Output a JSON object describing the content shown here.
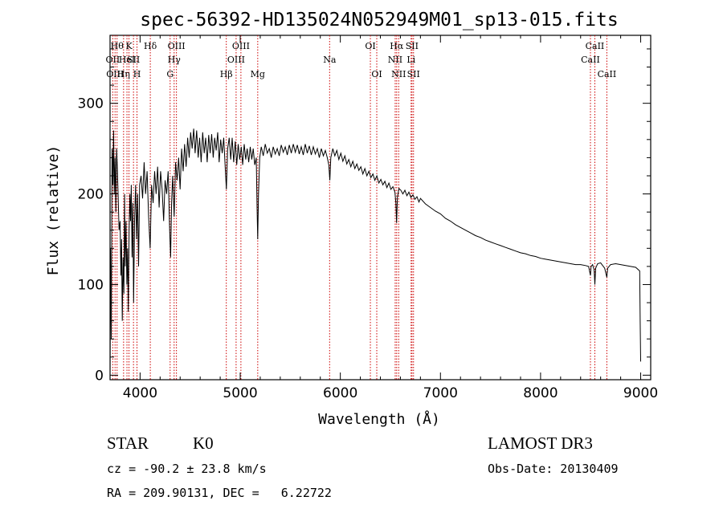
{
  "chart_data": {
    "type": "line",
    "title": "spec-56392-HD135024N052949M01_sp13-015.fits",
    "xlabel": "Wavelength (Å)",
    "ylabel": "Flux (relative)",
    "xlim": [
      3700,
      9100
    ],
    "ylim": [
      -5,
      375
    ],
    "xticks": [
      4000,
      5000,
      6000,
      7000,
      8000,
      9000
    ],
    "yticks": [
      0,
      100,
      200,
      300
    ],
    "series": [
      {
        "name": "spectrum",
        "points": [
          [
            3700,
            0
          ],
          [
            3705,
            140
          ],
          [
            3712,
            40
          ],
          [
            3720,
            250
          ],
          [
            3728,
            210
          ],
          [
            3735,
            270
          ],
          [
            3742,
            200
          ],
          [
            3750,
            240
          ],
          [
            3758,
            180
          ],
          [
            3765,
            250
          ],
          [
            3772,
            230
          ],
          [
            3780,
            200
          ],
          [
            3790,
            160
          ],
          [
            3800,
            170
          ],
          [
            3808,
            110
          ],
          [
            3815,
            150
          ],
          [
            3822,
            60
          ],
          [
            3830,
            130
          ],
          [
            3838,
            90
          ],
          [
            3845,
            200
          ],
          [
            3852,
            120
          ],
          [
            3860,
            170
          ],
          [
            3868,
            100
          ],
          [
            3875,
            140
          ],
          [
            3882,
            70
          ],
          [
            3890,
            160
          ],
          [
            3898,
            200
          ],
          [
            3905,
            170
          ],
          [
            3912,
            210
          ],
          [
            3920,
            130
          ],
          [
            3928,
            190
          ],
          [
            3935,
            80
          ],
          [
            3945,
            170
          ],
          [
            3955,
            210
          ],
          [
            3965,
            150
          ],
          [
            3975,
            200
          ],
          [
            3985,
            120
          ],
          [
            3995,
            210
          ],
          [
            4010,
            220
          ],
          [
            4025,
            195
          ],
          [
            4040,
            235
          ],
          [
            4055,
            200
          ],
          [
            4070,
            225
          ],
          [
            4085,
            175
          ],
          [
            4100,
            140
          ],
          [
            4115,
            210
          ],
          [
            4130,
            190
          ],
          [
            4145,
            225
          ],
          [
            4160,
            200
          ],
          [
            4175,
            230
          ],
          [
            4190,
            185
          ],
          [
            4205,
            225
          ],
          [
            4220,
            205
          ],
          [
            4235,
            170
          ],
          [
            4250,
            215
          ],
          [
            4265,
            200
          ],
          [
            4280,
            225
          ],
          [
            4295,
            160
          ],
          [
            4305,
            130
          ],
          [
            4315,
            190
          ],
          [
            4325,
            220
          ],
          [
            4340,
            175
          ],
          [
            4355,
            235
          ],
          [
            4370,
            215
          ],
          [
            4385,
            240
          ],
          [
            4400,
            205
          ],
          [
            4415,
            250
          ],
          [
            4430,
            225
          ],
          [
            4445,
            255
          ],
          [
            4460,
            230
          ],
          [
            4475,
            262
          ],
          [
            4490,
            240
          ],
          [
            4505,
            268
          ],
          [
            4520,
            250
          ],
          [
            4535,
            272
          ],
          [
            4550,
            245
          ],
          [
            4565,
            270
          ],
          [
            4580,
            240
          ],
          [
            4595,
            262
          ],
          [
            4610,
            235
          ],
          [
            4625,
            268
          ],
          [
            4640,
            245
          ],
          [
            4655,
            262
          ],
          [
            4670,
            235
          ],
          [
            4685,
            265
          ],
          [
            4700,
            245
          ],
          [
            4715,
            266
          ],
          [
            4730,
            240
          ],
          [
            4745,
            262
          ],
          [
            4760,
            248
          ],
          [
            4775,
            268
          ],
          [
            4790,
            235
          ],
          [
            4805,
            260
          ],
          [
            4820,
            245
          ],
          [
            4835,
            262
          ],
          [
            4850,
            230
          ],
          [
            4862,
            205
          ],
          [
            4875,
            250
          ],
          [
            4890,
            262
          ],
          [
            4905,
            238
          ],
          [
            4920,
            262
          ],
          [
            4935,
            235
          ],
          [
            4950,
            258
          ],
          [
            4965,
            232
          ],
          [
            4980,
            255
          ],
          [
            4995,
            238
          ],
          [
            5010,
            252
          ],
          [
            5025,
            232
          ],
          [
            5040,
            255
          ],
          [
            5055,
            238
          ],
          [
            5070,
            250
          ],
          [
            5085,
            235
          ],
          [
            5100,
            252
          ],
          [
            5115,
            238
          ],
          [
            5130,
            250
          ],
          [
            5145,
            232
          ],
          [
            5160,
            240
          ],
          [
            5168,
            185
          ],
          [
            5175,
            150
          ],
          [
            5183,
            200
          ],
          [
            5195,
            240
          ],
          [
            5210,
            252
          ],
          [
            5230,
            242
          ],
          [
            5250,
            255
          ],
          [
            5270,
            245
          ],
          [
            5290,
            250
          ],
          [
            5310,
            240
          ],
          [
            5330,
            252
          ],
          [
            5350,
            244
          ],
          [
            5370,
            250
          ],
          [
            5390,
            242
          ],
          [
            5410,
            254
          ],
          [
            5430,
            246
          ],
          [
            5450,
            252
          ],
          [
            5470,
            243
          ],
          [
            5490,
            254
          ],
          [
            5510,
            245
          ],
          [
            5530,
            255
          ],
          [
            5550,
            246
          ],
          [
            5570,
            254
          ],
          [
            5590,
            244
          ],
          [
            5610,
            252
          ],
          [
            5630,
            243
          ],
          [
            5650,
            255
          ],
          [
            5670,
            245
          ],
          [
            5690,
            253
          ],
          [
            5710,
            243
          ],
          [
            5730,
            252
          ],
          [
            5750,
            244
          ],
          [
            5770,
            250
          ],
          [
            5790,
            240
          ],
          [
            5810,
            250
          ],
          [
            5830,
            242
          ],
          [
            5850,
            248
          ],
          [
            5870,
            240
          ],
          [
            5885,
            232
          ],
          [
            5895,
            215
          ],
          [
            5905,
            240
          ],
          [
            5925,
            250
          ],
          [
            5945,
            242
          ],
          [
            5965,
            248
          ],
          [
            5985,
            238
          ],
          [
            6005,
            245
          ],
          [
            6025,
            236
          ],
          [
            6045,
            242
          ],
          [
            6065,
            233
          ],
          [
            6085,
            238
          ],
          [
            6105,
            230
          ],
          [
            6125,
            236
          ],
          [
            6145,
            228
          ],
          [
            6165,
            233
          ],
          [
            6185,
            226
          ],
          [
            6205,
            230
          ],
          [
            6225,
            222
          ],
          [
            6245,
            228
          ],
          [
            6265,
            220
          ],
          [
            6285,
            225
          ],
          [
            6305,
            218
          ],
          [
            6325,
            222
          ],
          [
            6345,
            215
          ],
          [
            6365,
            220
          ],
          [
            6385,
            212
          ],
          [
            6405,
            216
          ],
          [
            6425,
            210
          ],
          [
            6445,
            214
          ],
          [
            6465,
            207
          ],
          [
            6485,
            212
          ],
          [
            6505,
            205
          ],
          [
            6525,
            208
          ],
          [
            6545,
            202
          ],
          [
            6555,
            190
          ],
          [
            6562,
            168
          ],
          [
            6570,
            196
          ],
          [
            6585,
            206
          ],
          [
            6605,
            204
          ],
          [
            6625,
            200
          ],
          [
            6645,
            204
          ],
          [
            6665,
            198
          ],
          [
            6685,
            202
          ],
          [
            6705,
            196
          ],
          [
            6725,
            199
          ],
          [
            6745,
            194
          ],
          [
            6765,
            197
          ],
          [
            6785,
            191
          ],
          [
            6800,
            195
          ],
          [
            6850,
            189
          ],
          [
            6900,
            185
          ],
          [
            6950,
            181
          ],
          [
            7000,
            178
          ],
          [
            7050,
            173
          ],
          [
            7100,
            170
          ],
          [
            7150,
            166
          ],
          [
            7200,
            163
          ],
          [
            7250,
            160
          ],
          [
            7300,
            157
          ],
          [
            7350,
            154
          ],
          [
            7400,
            152
          ],
          [
            7450,
            149
          ],
          [
            7500,
            147
          ],
          [
            7550,
            145
          ],
          [
            7600,
            143
          ],
          [
            7650,
            141
          ],
          [
            7700,
            139
          ],
          [
            7750,
            137
          ],
          [
            7800,
            135
          ],
          [
            7850,
            134
          ],
          [
            7900,
            132
          ],
          [
            7950,
            131
          ],
          [
            8000,
            129
          ],
          [
            8050,
            128
          ],
          [
            8100,
            127
          ],
          [
            8150,
            126
          ],
          [
            8200,
            125
          ],
          [
            8250,
            124
          ],
          [
            8300,
            123
          ],
          [
            8350,
            122
          ],
          [
            8400,
            122
          ],
          [
            8450,
            121
          ],
          [
            8480,
            120
          ],
          [
            8498,
            110
          ],
          [
            8505,
            120
          ],
          [
            8520,
            122
          ],
          [
            8535,
            116
          ],
          [
            8542,
            100
          ],
          [
            8550,
            118
          ],
          [
            8570,
            123
          ],
          [
            8600,
            124
          ],
          [
            8640,
            118
          ],
          [
            8662,
            108
          ],
          [
            8670,
            118
          ],
          [
            8700,
            122
          ],
          [
            8750,
            123
          ],
          [
            8800,
            122
          ],
          [
            8850,
            121
          ],
          [
            8900,
            120
          ],
          [
            8950,
            119
          ],
          [
            8990,
            115
          ],
          [
            8995,
            60
          ],
          [
            9000,
            15
          ]
        ]
      }
    ],
    "line_markers": [
      {
        "wl": 3727,
        "label": "OII",
        "row": 1
      },
      {
        "wl": 3750,
        "label": "OIII",
        "row": 2
      },
      {
        "wl": 3770,
        "label": "Hθ",
        "row": 0
      },
      {
        "wl": 3835,
        "label": "Hη",
        "row": 2
      },
      {
        "wl": 3869,
        "label": "HeI",
        "row": 1
      },
      {
        "wl": 3889,
        "label": "K",
        "row": 0
      },
      {
        "wl": 3934,
        "label": "SII",
        "row": 1
      },
      {
        "wl": 3969,
        "label": "H",
        "row": 2
      },
      {
        "wl": 4102,
        "label": "Hδ",
        "row": 0
      },
      {
        "wl": 4300,
        "label": "G",
        "row": 2
      },
      {
        "wl": 4340,
        "label": "Hγ",
        "row": 1
      },
      {
        "wl": 4363,
        "label": "OIII",
        "row": 0
      },
      {
        "wl": 4861,
        "label": "Hβ",
        "row": 2
      },
      {
        "wl": 4959,
        "label": "OIII",
        "row": 1
      },
      {
        "wl": 5007,
        "label": "OIII",
        "row": 0
      },
      {
        "wl": 5175,
        "label": "Mg",
        "row": 2
      },
      {
        "wl": 5893,
        "label": "Na",
        "row": 1
      },
      {
        "wl": 6300,
        "label": "OI",
        "row": 0
      },
      {
        "wl": 6364,
        "label": "OI",
        "row": 2
      },
      {
        "wl": 6548,
        "label": "NII",
        "row": 1
      },
      {
        "wl": 6563,
        "label": "Hα",
        "row": 0
      },
      {
        "wl": 6583,
        "label": "NII",
        "row": 2
      },
      {
        "wl": 6707,
        "label": "Li",
        "row": 1
      },
      {
        "wl": 6716,
        "label": "SII",
        "row": 0
      },
      {
        "wl": 6731,
        "label": "SII",
        "row": 2
      },
      {
        "wl": 8498,
        "label": "CaII",
        "row": 1
      },
      {
        "wl": 8542,
        "label": "CaII",
        "row": 0
      },
      {
        "wl": 8662,
        "label": "CaII",
        "row": 2
      }
    ],
    "colors": {
      "spectrum": "#000000",
      "markers": "#cc0000"
    }
  },
  "info": {
    "class": "STAR",
    "subclass": "K0",
    "survey": "LAMOST DR3",
    "cz": "cz = -90.2 ± 23.8 km/s",
    "obs_date": "Obs-Date: 20130409",
    "coords": "RA = 209.90131, DEC =   6.22722"
  }
}
